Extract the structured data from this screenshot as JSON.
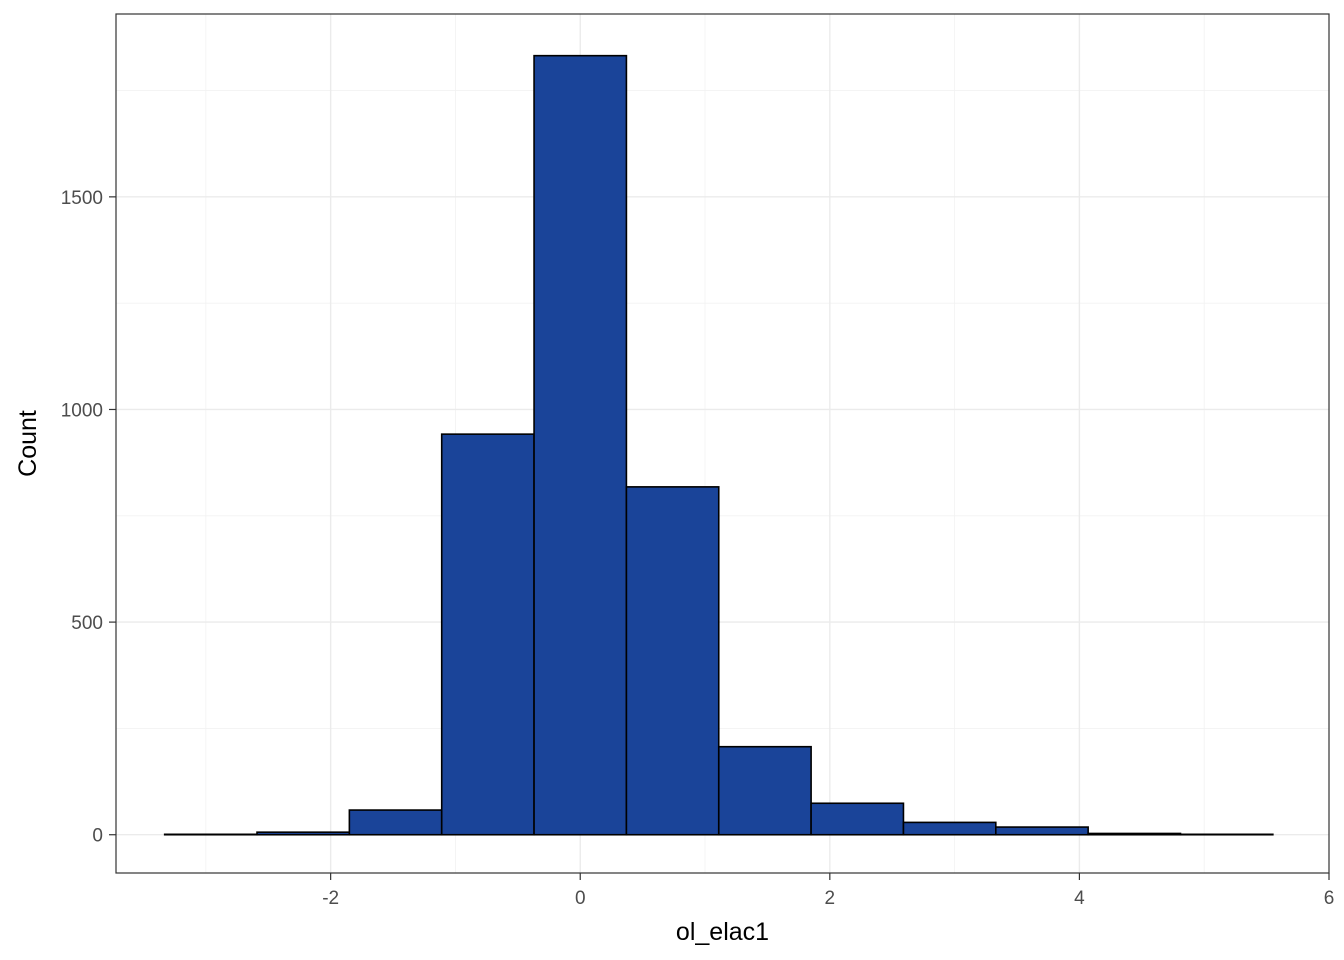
{
  "chart_data": {
    "type": "bar",
    "subtype": "histogram",
    "title": "",
    "xlabel": "ol_elac1",
    "ylabel": "Count",
    "xlim": [
      -3.72,
      6.0
    ],
    "ylim": [
      -90,
      1930
    ],
    "x_ticks": [
      -2,
      0,
      2,
      4,
      6
    ],
    "y_ticks": [
      0,
      500,
      1000,
      1500
    ],
    "grid": true,
    "legend": "none",
    "bar_fill": "#1a4499",
    "bar_outline": "#000000",
    "bins": [
      {
        "x0": -3.33,
        "x1": -2.59,
        "count": 1
      },
      {
        "x0": -2.59,
        "x1": -1.85,
        "count": 6
      },
      {
        "x0": -1.85,
        "x1": -1.11,
        "count": 58
      },
      {
        "x0": -1.11,
        "x1": -0.37,
        "count": 942
      },
      {
        "x0": -0.37,
        "x1": 0.37,
        "count": 1832
      },
      {
        "x0": 0.37,
        "x1": 1.11,
        "count": 818
      },
      {
        "x0": 1.11,
        "x1": 1.85,
        "count": 207
      },
      {
        "x0": 1.85,
        "x1": 2.59,
        "count": 74
      },
      {
        "x0": 2.59,
        "x1": 3.33,
        "count": 29
      },
      {
        "x0": 3.33,
        "x1": 4.07,
        "count": 18
      },
      {
        "x0": 4.07,
        "x1": 4.81,
        "count": 3
      },
      {
        "x0": 4.81,
        "x1": 5.55,
        "count": 1
      }
    ]
  }
}
